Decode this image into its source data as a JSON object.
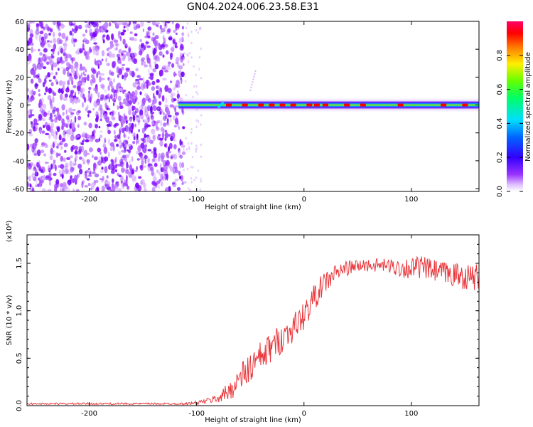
{
  "title": "GN04.2024.006.23.58.E31",
  "chart_data": [
    {
      "type": "heatmap",
      "xlabel": "Height of straight line (km)",
      "ylabel": "Frequency (Hz)",
      "xlim": [
        -258,
        163
      ],
      "ylim": [
        -62,
        60
      ],
      "x_ticks": [
        -200,
        -100,
        0,
        100
      ],
      "y_ticks": [
        60,
        40,
        20,
        0,
        -20,
        -40,
        -60
      ],
      "noise_region_x": [
        -258,
        -112
      ],
      "signal_region_x": [
        -117,
        163
      ],
      "signal_center_frequency": 0,
      "colorbar": {
        "label": "Normalized spectral amplitude",
        "range": [
          0,
          1
        ],
        "ticks": [
          "0.0",
          "0.2",
          "0.4",
          "0.6",
          "0.8"
        ],
        "colors": [
          "#ffffff",
          "#cc66ff",
          "#6600ff",
          "#0000ff",
          "#00ccff",
          "#00ff66",
          "#66ff00",
          "#ffff00",
          "#ff8800",
          "#ff0000",
          "#ff0066"
        ]
      }
    },
    {
      "type": "line",
      "xlabel": "Height of straight line (km)",
      "ylabel": "SNR (10 * v/v)",
      "y_multiplier": "(x10⁴)",
      "xlim": [
        -258,
        163
      ],
      "ylim": [
        0,
        1.8
      ],
      "x_ticks": [
        -200,
        -100,
        0,
        100
      ],
      "y_ticks": [
        "0.0",
        "0.5",
        "1.0",
        "1.5"
      ],
      "line_color": "#e8383d",
      "x": [
        -258,
        -240,
        -220,
        -200,
        -180,
        -160,
        -140,
        -120,
        -110,
        -100,
        -90,
        -80,
        -70,
        -60,
        -50,
        -40,
        -30,
        -20,
        -10,
        0,
        10,
        20,
        30,
        40,
        50,
        60,
        70,
        80,
        90,
        100,
        110,
        120,
        130,
        140,
        150,
        163
      ],
      "y": [
        0.02,
        0.02,
        0.02,
        0.02,
        0.02,
        0.02,
        0.02,
        0.02,
        0.02,
        0.03,
        0.05,
        0.08,
        0.15,
        0.28,
        0.4,
        0.5,
        0.62,
        0.72,
        0.82,
        0.95,
        1.15,
        1.3,
        1.4,
        1.45,
        1.47,
        1.48,
        1.48,
        1.47,
        1.45,
        1.45,
        1.46,
        1.42,
        1.4,
        1.38,
        1.36,
        1.35
      ],
      "noise_amplitude": [
        0.01,
        0.01,
        0.01,
        0.01,
        0.01,
        0.01,
        0.01,
        0.01,
        0.01,
        0.02,
        0.03,
        0.05,
        0.1,
        0.15,
        0.18,
        0.18,
        0.16,
        0.16,
        0.15,
        0.15,
        0.14,
        0.12,
        0.1,
        0.08,
        0.07,
        0.07,
        0.07,
        0.08,
        0.1,
        0.12,
        0.12,
        0.12,
        0.12,
        0.13,
        0.14,
        0.14
      ]
    }
  ]
}
